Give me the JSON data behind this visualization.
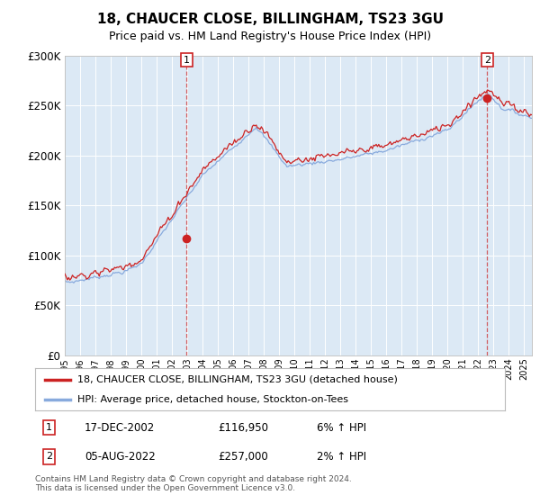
{
  "title": "18, CHAUCER CLOSE, BILLINGHAM, TS23 3GU",
  "subtitle": "Price paid vs. HM Land Registry's House Price Index (HPI)",
  "background_color": "#dce9f5",
  "outer_bg_color": "#ffffff",
  "legend_label_red": "18, CHAUCER CLOSE, BILLINGHAM, TS23 3GU (detached house)",
  "legend_label_blue": "HPI: Average price, detached house, Stockton-on-Tees",
  "transaction1_date": "17-DEC-2002",
  "transaction1_price": 116950,
  "transaction1_hpi": "6% ↑ HPI",
  "transaction2_date": "05-AUG-2022",
  "transaction2_price": 257000,
  "transaction2_hpi": "2% ↑ HPI",
  "footer": "Contains HM Land Registry data © Crown copyright and database right 2024.\nThis data is licensed under the Open Government Licence v3.0.",
  "ylim": [
    0,
    300000
  ],
  "yticks": [
    0,
    50000,
    100000,
    150000,
    200000,
    250000,
    300000
  ],
  "ytick_labels": [
    "£0",
    "£50K",
    "£100K",
    "£150K",
    "£200K",
    "£250K",
    "£300K"
  ],
  "year_start": 1995,
  "year_end": 2025,
  "red_color": "#cc2222",
  "blue_color": "#88aadd",
  "grid_color": "#ffffff",
  "t1": 2002.958,
  "t2": 2022.583,
  "p1": 116950,
  "p2": 257000
}
